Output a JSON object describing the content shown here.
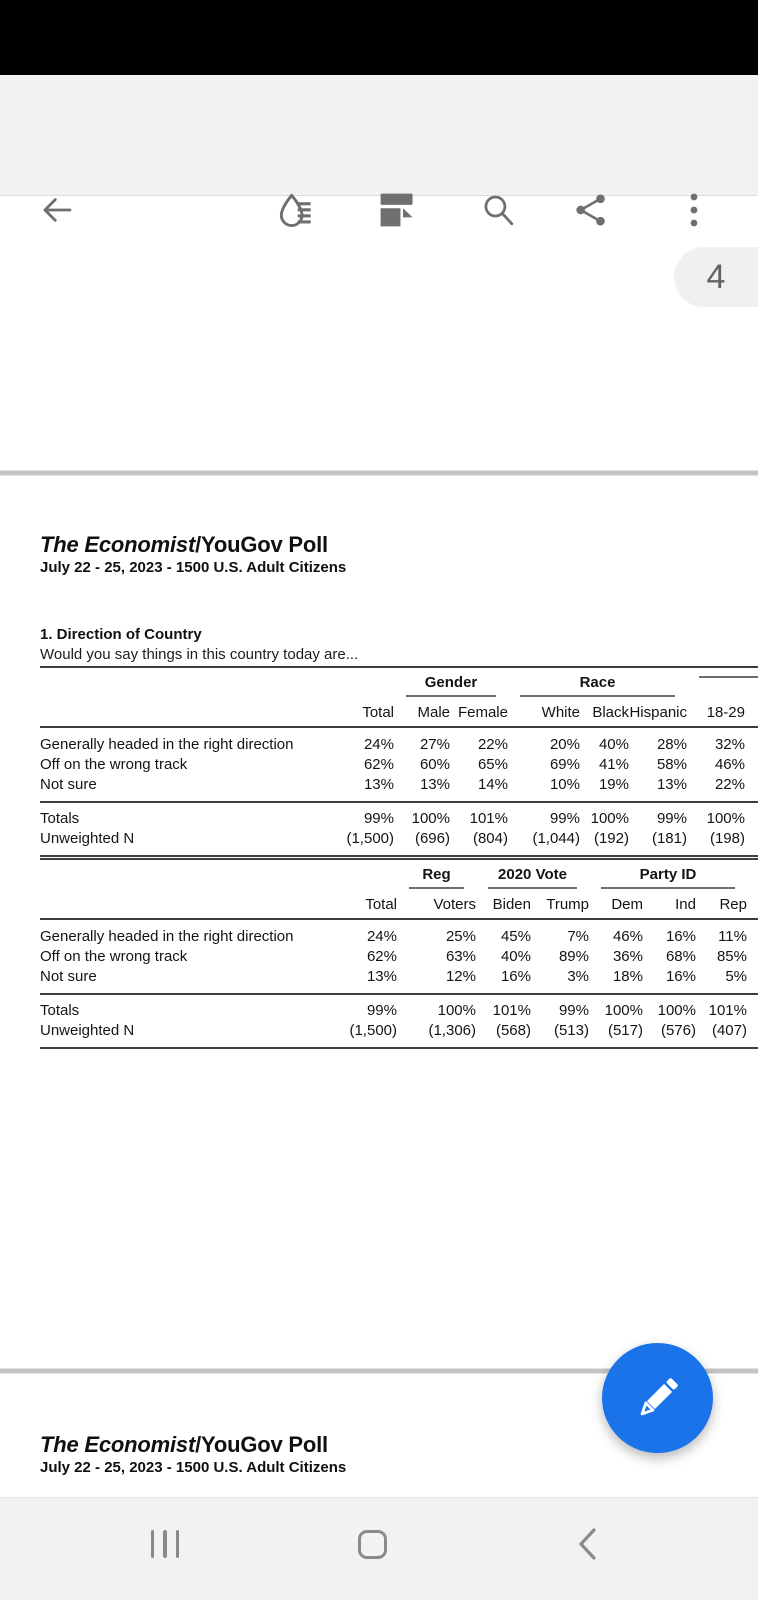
{
  "toolbar": {
    "icons": [
      {
        "name": "back-arrow"
      },
      {
        "name": "ink-annotate"
      },
      {
        "name": "page-layout"
      },
      {
        "name": "search"
      },
      {
        "name": "share"
      },
      {
        "name": "overflow-menu"
      }
    ]
  },
  "page_badge": {
    "number": "4"
  },
  "colors": {
    "fab_blue": "#1a73e8",
    "toolbar_bg": "#f2f2f2",
    "divider_gray": "#c3c3c3",
    "badge_bg": "#f0f0f0",
    "icon_gray": "#6f6f6f"
  },
  "page4": {
    "title_italic": "The Economist",
    "title_rest": "/YouGov Poll",
    "subtitle": "July 22 - 25, 2023 - 1500 U.S. Adult Citizens",
    "question_title": "1. Direction of Country",
    "question_text": "Would you say things in this country today are...",
    "tables": [
      {
        "groups": [
          {
            "label": "",
            "span": 2,
            "underline": false
          },
          {
            "label": "Gender",
            "span": 2,
            "underline": true
          },
          {
            "label": "Race",
            "span": 3,
            "underline": true
          },
          {
            "label": "",
            "span": 2,
            "underline": true
          }
        ],
        "columns": [
          "",
          "Total",
          "Male",
          "Female",
          "White",
          "Black",
          "Hispanic",
          "18-29",
          ""
        ],
        "rows": [
          {
            "label": "Generally headed in the right direction",
            "values": [
              "24%",
              "27%",
              "22%",
              "20%",
              "40%",
              "28%",
              "32%",
              ""
            ]
          },
          {
            "label": "Off on the wrong track",
            "values": [
              "62%",
              "60%",
              "65%",
              "69%",
              "41%",
              "58%",
              "46%",
              ""
            ]
          },
          {
            "label": "Not sure",
            "values": [
              "13%",
              "13%",
              "14%",
              "10%",
              "19%",
              "13%",
              "22%",
              ""
            ]
          }
        ],
        "totals_rows": [
          {
            "label": "Totals",
            "values": [
              "99%",
              "100%",
              "101%",
              "99%",
              "100%",
              "99%",
              "100%",
              ""
            ]
          },
          {
            "label": "Unweighted N",
            "values": [
              "(1,500)",
              "(696)",
              "(804)",
              "(1,044)",
              "(192)",
              "(181)",
              "(198)",
              ""
            ]
          }
        ]
      },
      {
        "groups": [
          {
            "label": "",
            "span": 2,
            "underline": false
          },
          {
            "label": "Reg",
            "span": 1,
            "underline": true
          },
          {
            "label": "2020 Vote",
            "span": 2,
            "underline": true
          },
          {
            "label": "Party ID",
            "span": 3,
            "underline": true
          },
          {
            "label": "",
            "span": 1,
            "underline": true
          }
        ],
        "columns": [
          "",
          "Total",
          "Voters",
          "Biden",
          "Trump",
          "Dem",
          "Ind",
          "Rep",
          ""
        ],
        "rows": [
          {
            "label": "Generally headed in the right direction",
            "values": [
              "24%",
              "25%",
              "45%",
              "7%",
              "46%",
              "16%",
              "11%",
              ""
            ]
          },
          {
            "label": "Off on the wrong track",
            "values": [
              "62%",
              "63%",
              "40%",
              "89%",
              "36%",
              "68%",
              "85%",
              ""
            ]
          },
          {
            "label": "Not sure",
            "values": [
              "13%",
              "12%",
              "16%",
              "3%",
              "18%",
              "16%",
              "5%",
              ""
            ]
          }
        ],
        "totals_rows": [
          {
            "label": "Totals",
            "values": [
              "99%",
              "100%",
              "101%",
              "99%",
              "100%",
              "100%",
              "101%",
              ""
            ]
          },
          {
            "label": "Unweighted N",
            "values": [
              "(1,500)",
              "(1,306)",
              "(568)",
              "(513)",
              "(517)",
              "(576)",
              "(407)",
              ""
            ]
          }
        ]
      }
    ]
  },
  "page5": {
    "title_italic": "The Economist",
    "title_rest": "/YouGov Poll",
    "subtitle": "July 22 - 25, 2023 - 1500 U.S. Adult Citizens"
  }
}
